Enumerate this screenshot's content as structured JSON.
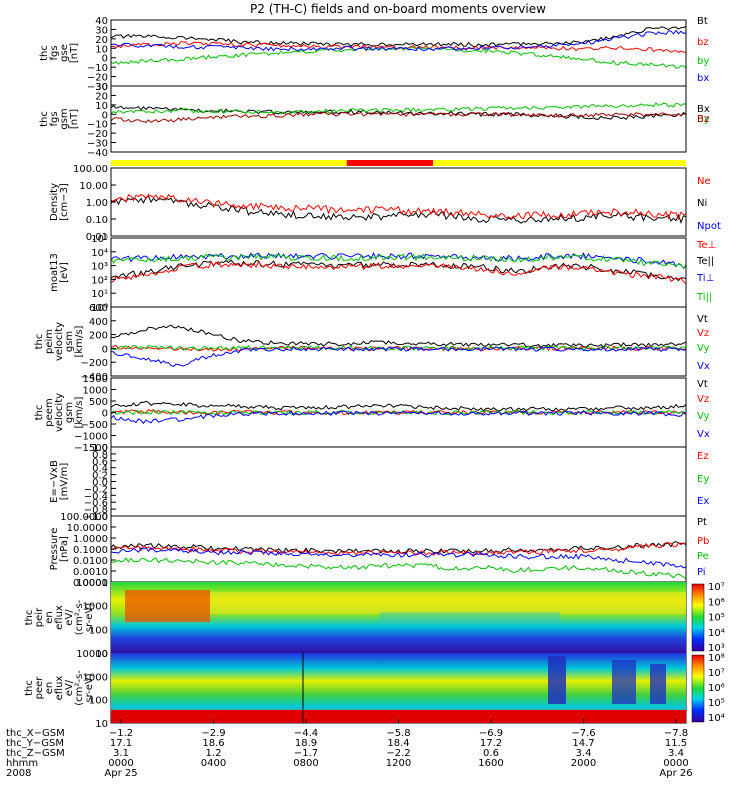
{
  "title": "P2 (TH-C) fields and on-board moments overview",
  "chart_data": [
    {
      "type": "line",
      "panel": "fgs-gse",
      "ylabel": [
        "thc",
        "fgs",
        "gse",
        "[nT]"
      ],
      "ylim": [
        -40,
        40
      ],
      "y_ticks": [
        "40",
        "30",
        "20",
        "10",
        "0",
        "−10",
        "−20",
        "−30"
      ],
      "legend": [
        {
          "name": "Bt",
          "color": "#000000"
        },
        {
          "name": "bz",
          "color": "#ff0000"
        },
        {
          "name": "by",
          "color": "#00c000"
        },
        {
          "name": "bx",
          "color": "#0000ff"
        }
      ],
      "series": [
        {
          "name": "Bt",
          "color": "#000000",
          "values": [
            20,
            20,
            19,
            16,
            13,
            12,
            11,
            10,
            11,
            10,
            11,
            10,
            11,
            12,
            14,
            20,
            30,
            31
          ]
        },
        {
          "name": "bz",
          "color": "#ff0000",
          "values": [
            8,
            10,
            12,
            11,
            10,
            9,
            8,
            8,
            8,
            7,
            7,
            7,
            6,
            6,
            5,
            6,
            4,
            1
          ]
        },
        {
          "name": "by",
          "color": "#00c000",
          "values": [
            -12,
            -10,
            -8,
            -5,
            -2,
            0,
            2,
            4,
            5,
            5,
            4,
            3,
            0,
            -4,
            -8,
            -12,
            -14,
            -17
          ]
        },
        {
          "name": "bx",
          "color": "#0000ff",
          "values": [
            10,
            9,
            8,
            7,
            6,
            5,
            5,
            6,
            5,
            5,
            5,
            6,
            7,
            9,
            12,
            18,
            24,
            26
          ]
        }
      ]
    },
    {
      "type": "line",
      "panel": "fgs-gsm",
      "ylabel": [
        "thc",
        "fgs",
        "gsm",
        "[nT]"
      ],
      "ylim": [
        -40,
        30
      ],
      "y_ticks": [
        "30",
        "20",
        "10",
        "0",
        "−10",
        "−20",
        "−30",
        "−40"
      ],
      "legend": [
        {
          "name": "Bx",
          "color": "#000000"
        },
        {
          "name": "By",
          "color": "#00c000"
        },
        {
          "name": "Bz",
          "color": "#a00000"
        }
      ],
      "series": [
        {
          "name": "Bx",
          "color": "#000000",
          "values": [
            8,
            6,
            5,
            4,
            3,
            2,
            2,
            3,
            2,
            1,
            1,
            0,
            0,
            -2,
            -3,
            -4,
            -2,
            0
          ]
        },
        {
          "name": "By",
          "color": "#00c000",
          "values": [
            2,
            3,
            4,
            3,
            3,
            2,
            3,
            4,
            4,
            5,
            5,
            6,
            7,
            7,
            8,
            9,
            10,
            10
          ]
        },
        {
          "name": "Bz",
          "color": "#a00000",
          "values": [
            -5,
            -8,
            -6,
            -4,
            -2,
            -1,
            0,
            0,
            0,
            0,
            0,
            0,
            0,
            -1,
            -1,
            0,
            0,
            0
          ]
        }
      ]
    },
    {
      "type": "line",
      "panel": "density",
      "ylabel": [
        "Density",
        "[cm−3]"
      ],
      "scale": "log",
      "ylim": [
        0.01,
        100
      ],
      "y_ticks": [
        "100.00",
        "10.00",
        "1.00",
        "0.10",
        "0.01"
      ],
      "legend": [
        {
          "name": "Ne",
          "color": "#ff0000"
        },
        {
          "name": "Ni",
          "color": "#000000"
        },
        {
          "name": "Npot",
          "color": "#0000ff"
        }
      ],
      "series": [
        {
          "name": "Ni",
          "color": "#000000",
          "values": [
            0.8,
            1.5,
            1.0,
            0.5,
            0.3,
            0.2,
            0.15,
            0.12,
            0.15,
            0.2,
            0.15,
            0.1,
            0.08,
            0.1,
            0.12,
            0.15,
            0.12,
            0.1
          ]
        },
        {
          "name": "Ne",
          "color": "#ff0000",
          "values": [
            1.2,
            2.0,
            1.5,
            0.8,
            0.6,
            0.5,
            0.4,
            0.3,
            0.35,
            0.3,
            0.25,
            0.2,
            0.15,
            0.18,
            0.2,
            0.25,
            0.2,
            0.15
          ]
        }
      ]
    },
    {
      "type": "line",
      "panel": "temperature",
      "ylabel": [
        "moat13",
        "[eV]"
      ],
      "scale": "log",
      "ylim": [
        1,
        100000
      ],
      "y_ticks": [
        "10⁵",
        "10⁴",
        "10³",
        "10²",
        "10¹",
        "10⁰"
      ],
      "legend": [
        {
          "name": "Te⊥",
          "color": "#ff0000"
        },
        {
          "name": "Te||",
          "color": "#000000"
        },
        {
          "name": "Ti⊥",
          "color": "#0000ff"
        },
        {
          "name": "Ti||",
          "color": "#00c000"
        }
      ],
      "series": [
        {
          "name": "Ti⊥",
          "color": "#0000ff",
          "values": [
            3000,
            3500,
            4000,
            4500,
            5000,
            5000,
            5000,
            4500,
            5000,
            5000,
            5000,
            4000,
            3000,
            5000,
            5000,
            3000,
            2000,
            1000
          ]
        },
        {
          "name": "Ti||",
          "color": "#00c000",
          "values": [
            2500,
            3000,
            3500,
            4000,
            4000,
            4000,
            4000,
            3500,
            4000,
            4000,
            4000,
            3500,
            2500,
            4000,
            4000,
            2500,
            1500,
            800
          ]
        },
        {
          "name": "Te||",
          "color": "#000000",
          "values": [
            150,
            300,
            800,
            1500,
            1500,
            1200,
            1000,
            1000,
            1200,
            1200,
            1000,
            800,
            300,
            900,
            800,
            400,
            200,
            100
          ]
        },
        {
          "name": "Te⊥",
          "color": "#ff0000",
          "values": [
            100,
            200,
            600,
            1200,
            1200,
            1000,
            800,
            800,
            1000,
            1000,
            800,
            600,
            200,
            700,
            600,
            300,
            150,
            80
          ]
        }
      ]
    },
    {
      "type": "line",
      "panel": "peim-velocity",
      "ylabel": [
        "thc",
        "peim",
        "velocity",
        "gsm",
        "[km/s]"
      ],
      "ylim": [
        -400,
        600
      ],
      "y_ticks": [
        "600",
        "400",
        "200",
        "0",
        "−200",
        "−400"
      ],
      "legend": [
        {
          "name": "Vt",
          "color": "#000000"
        },
        {
          "name": "Vz",
          "color": "#ff0000"
        },
        {
          "name": "Vy",
          "color": "#00c000"
        },
        {
          "name": "Vx",
          "color": "#0000ff"
        }
      ],
      "series": [
        {
          "name": "Vt",
          "color": "#000000",
          "values": [
            150,
            280,
            320,
            200,
            100,
            80,
            60,
            70,
            90,
            70,
            60,
            60,
            50,
            40,
            40,
            50,
            50,
            60
          ]
        },
        {
          "name": "Vz",
          "color": "#ff0000",
          "values": [
            20,
            10,
            -20,
            -10,
            0,
            5,
            0,
            0,
            0,
            0,
            0,
            0,
            0,
            0,
            0,
            0,
            0,
            0
          ]
        },
        {
          "name": "Vy",
          "color": "#00c000",
          "values": [
            10,
            20,
            0,
            10,
            10,
            5,
            5,
            5,
            5,
            5,
            5,
            5,
            5,
            5,
            5,
            5,
            5,
            5
          ]
        },
        {
          "name": "Vx",
          "color": "#0000ff",
          "values": [
            -50,
            -150,
            -250,
            -100,
            -20,
            -10,
            -10,
            -10,
            -10,
            -10,
            -10,
            -10,
            -10,
            -10,
            -10,
            -10,
            -10,
            -20
          ]
        }
      ]
    },
    {
      "type": "line",
      "panel": "peem-velocity",
      "ylabel": [
        "thc",
        "peem",
        "velocity",
        "gsm",
        "[km/s]"
      ],
      "ylim": [
        -1500,
        1500
      ],
      "y_ticks": [
        "1500",
        "1000",
        "500",
        "0",
        "−500",
        "−1000",
        "−1500"
      ],
      "legend": [
        {
          "name": "Vt",
          "color": "#000000"
        },
        {
          "name": "Vz",
          "color": "#ff0000"
        },
        {
          "name": "Vy",
          "color": "#00c000"
        },
        {
          "name": "Vx",
          "color": "#0000ff"
        }
      ],
      "series": [
        {
          "name": "Vt",
          "color": "#000000",
          "values": [
            300,
            400,
            350,
            300,
            250,
            200,
            200,
            250,
            300,
            250,
            200,
            150,
            150,
            150,
            150,
            200,
            200,
            300
          ]
        },
        {
          "name": "Vz",
          "color": "#ff0000",
          "values": [
            0,
            50,
            0,
            0,
            20,
            0,
            0,
            0,
            0,
            0,
            0,
            0,
            0,
            0,
            0,
            0,
            0,
            0
          ]
        },
        {
          "name": "Vy",
          "color": "#00c000",
          "values": [
            0,
            0,
            0,
            0,
            0,
            0,
            0,
            0,
            0,
            0,
            0,
            0,
            0,
            0,
            0,
            0,
            0,
            0
          ]
        },
        {
          "name": "Vx",
          "color": "#0000ff",
          "values": [
            -200,
            -400,
            -300,
            -150,
            -50,
            -30,
            -30,
            -30,
            -30,
            -30,
            -30,
            -30,
            -30,
            -30,
            -30,
            -30,
            -30,
            -100
          ]
        }
      ]
    },
    {
      "type": "line",
      "panel": "efield",
      "ylabel": [
        "E=−VxB",
        "[mV/m]"
      ],
      "ylim": [
        -1,
        1
      ],
      "y_ticks": [
        "1.0",
        "0.8",
        "0.6",
        "0.4",
        "0.2",
        "0.0",
        "−0.2",
        "−0.4",
        "−0.6",
        "−0.8",
        "−1.0"
      ],
      "legend": [
        {
          "name": "Ez",
          "color": "#ff0000"
        },
        {
          "name": "Ey",
          "color": "#00c000"
        },
        {
          "name": "Ex",
          "color": "#0000ff"
        }
      ],
      "series": []
    },
    {
      "type": "line",
      "panel": "pressure",
      "ylabel": [
        "Pressure",
        "[nPa]"
      ],
      "scale": "log",
      "ylim": [
        0.0001,
        100
      ],
      "y_ticks": [
        "100.0000",
        "10.0000",
        "1.0000",
        "0.1000",
        "0.0100",
        "0.0010",
        "0.0001"
      ],
      "legend": [
        {
          "name": "Pt",
          "color": "#000000"
        },
        {
          "name": "Pb",
          "color": "#ff0000"
        },
        {
          "name": "Pe",
          "color": "#00c000"
        },
        {
          "name": "Pi",
          "color": "#0000ff"
        }
      ],
      "series": [
        {
          "name": "Pt",
          "color": "#000000",
          "values": [
            0.15,
            0.2,
            0.18,
            0.12,
            0.1,
            0.08,
            0.07,
            0.06,
            0.07,
            0.06,
            0.07,
            0.07,
            0.08,
            0.1,
            0.12,
            0.15,
            0.25,
            0.3
          ]
        },
        {
          "name": "Pb",
          "color": "#ff0000",
          "values": [
            0.1,
            0.12,
            0.1,
            0.08,
            0.06,
            0.05,
            0.05,
            0.04,
            0.05,
            0.04,
            0.05,
            0.04,
            0.05,
            0.06,
            0.07,
            0.1,
            0.2,
            0.3
          ]
        },
        {
          "name": "Pi",
          "color": "#0000ff",
          "values": [
            0.05,
            0.08,
            0.07,
            0.05,
            0.05,
            0.04,
            0.03,
            0.03,
            0.03,
            0.03,
            0.03,
            0.03,
            0.02,
            0.02,
            0.02,
            0.01,
            0.005,
            0.003
          ]
        },
        {
          "name": "Pe",
          "color": "#00c000",
          "values": [
            0.008,
            0.01,
            0.008,
            0.006,
            0.005,
            0.003,
            0.003,
            0.002,
            0.003,
            0.003,
            0.002,
            0.002,
            0.001,
            0.002,
            0.002,
            0.001,
            0.0005,
            0.0003
          ]
        }
      ]
    },
    {
      "type": "heatmap",
      "panel": "peir-eflux",
      "ylabel": [
        "thc",
        "peir",
        "en",
        "eflux",
        "eV/",
        "(cm²-s-",
        "sr-eV)"
      ],
      "y_ticks": [
        "10000",
        "1000",
        "100",
        "10"
      ],
      "colorbar_ticks": [
        "10⁷",
        "10⁶",
        "10⁵",
        "10⁴",
        "10³"
      ]
    },
    {
      "type": "heatmap",
      "panel": "peer-eflux",
      "ylabel": [
        "thc",
        "peer",
        "en",
        "eflux",
        "eV/",
        "(cm²-s-",
        "sr-eV)"
      ],
      "y_ticks": [
        "10000",
        "1000",
        "100",
        "10"
      ],
      "colorbar_ticks": [
        "10⁸",
        "10⁷",
        "10⁶",
        "10⁵",
        "10⁴"
      ]
    }
  ],
  "mode_bar": [
    {
      "from": 0,
      "to": 0.41,
      "color": "#ffff00"
    },
    {
      "from": 0.41,
      "to": 0.56,
      "color": "#ff0000"
    },
    {
      "from": 0.56,
      "to": 1,
      "color": "#ffff00"
    }
  ],
  "x_axis": {
    "row_labels": [
      "thc_X−GSM",
      "thc_Y−GSM",
      "thc_Z−GSM",
      "hhmm",
      "2008"
    ],
    "columns": [
      {
        "x": "−1.2",
        "y": "17.1",
        "z": "3.1",
        "hhmm": "0000",
        "date": "Apr 25"
      },
      {
        "x": "−2.9",
        "y": "18.6",
        "z": "1.2",
        "hhmm": "0400",
        "date": ""
      },
      {
        "x": "−4.4",
        "y": "18.9",
        "z": "−1.7",
        "hhmm": "0800",
        "date": ""
      },
      {
        "x": "−5.8",
        "y": "18.4",
        "z": "−2.2",
        "hhmm": "1200",
        "date": ""
      },
      {
        "x": "−6.9",
        "y": "17.2",
        "z": "0.6",
        "hhmm": "1600",
        "date": ""
      },
      {
        "x": "−7.6",
        "y": "14.7",
        "z": "3.4",
        "hhmm": "2000",
        "date": ""
      },
      {
        "x": "−7.8",
        "y": "11.5",
        "z": "3.4",
        "hhmm": "0000",
        "date": "Apr 26"
      }
    ]
  }
}
